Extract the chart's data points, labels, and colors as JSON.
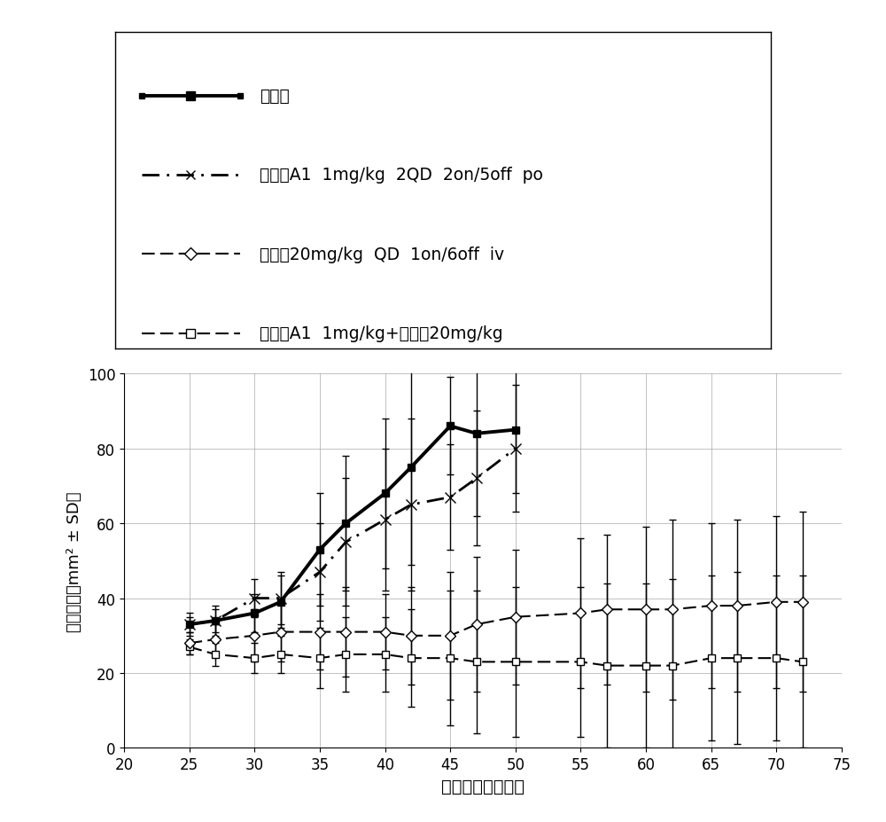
{
  "xlabel": "胿瘷接种后的天数",
  "ylabel": "胿瘷面积［mm² ± SD］",
  "xlim": [
    20,
    75
  ],
  "ylim": [
    0,
    100
  ],
  "xticks": [
    20,
    25,
    30,
    35,
    40,
    45,
    50,
    55,
    60,
    65,
    70,
    75
  ],
  "yticks": [
    0,
    20,
    40,
    60,
    80,
    100
  ],
  "series": [
    {
      "name": "媒介物",
      "x": [
        25,
        27,
        30,
        32,
        35,
        37,
        40,
        42,
        45,
        47,
        50
      ],
      "y": [
        33,
        34,
        36,
        39,
        53,
        60,
        68,
        75,
        86,
        84,
        85
      ],
      "yerr": [
        2,
        3,
        5,
        7,
        15,
        18,
        20,
        26,
        13,
        22,
        17
      ],
      "linewidth": 2.8,
      "marker": "s",
      "markersize": 6,
      "markerfacecolor": "#000000",
      "linetype": "solid"
    },
    {
      "name": "化合物A1 1mg/kg 2QD 2on/5off po",
      "x": [
        25,
        27,
        30,
        32,
        35,
        37,
        40,
        42,
        45,
        47,
        50
      ],
      "y": [
        33,
        34,
        40,
        40,
        47,
        55,
        61,
        65,
        67,
        72,
        80
      ],
      "yerr": [
        3,
        4,
        5,
        7,
        13,
        17,
        19,
        23,
        14,
        18,
        17
      ],
      "linewidth": 2.0,
      "marker": "x",
      "markersize": 9,
      "markerfacecolor": "#000000",
      "linetype": "dashdot"
    },
    {
      "name": "紫杉醇20mg/kg QD 1on/6off iv",
      "x": [
        25,
        27,
        30,
        32,
        35,
        37,
        40,
        42,
        45,
        47,
        50,
        55,
        57,
        60,
        62,
        65,
        67,
        70,
        72
      ],
      "y": [
        28,
        29,
        30,
        31,
        31,
        31,
        31,
        30,
        30,
        33,
        35,
        36,
        37,
        37,
        37,
        38,
        38,
        39,
        39
      ],
      "yerr": [
        3,
        4,
        7,
        8,
        10,
        12,
        10,
        13,
        17,
        18,
        18,
        20,
        20,
        22,
        24,
        22,
        23,
        23,
        24
      ],
      "linewidth": 1.5,
      "marker": "D",
      "markersize": 6,
      "markerfacecolor": "#ffffff",
      "linetype": "dashed"
    },
    {
      "name": "化合物A1 1mg/kg+紫杉醇20mg/kg",
      "x": [
        25,
        27,
        30,
        32,
        35,
        37,
        40,
        42,
        45,
        47,
        50,
        55,
        57,
        60,
        62,
        65,
        67,
        70,
        72
      ],
      "y": [
        27,
        25,
        24,
        25,
        24,
        25,
        25,
        24,
        24,
        23,
        23,
        23,
        22,
        22,
        22,
        24,
        24,
        24,
        23
      ],
      "yerr": [
        2,
        3,
        4,
        5,
        8,
        10,
        10,
        13,
        18,
        19,
        20,
        20,
        22,
        22,
        23,
        22,
        23,
        22,
        23
      ],
      "linewidth": 1.5,
      "marker": "s",
      "markersize": 6,
      "markerfacecolor": "#ffffff",
      "linetype": "dashed"
    }
  ],
  "legend_entries": [
    {
      "label": "媒介物",
      "marker": "s",
      "markerfacecolor": "#000000",
      "linewidth": 2.8,
      "linetype": "solid"
    },
    {
      "label": "化合物A1  1mg/kg  2QD  2on/5off  po",
      "marker": "x",
      "markerfacecolor": "#000000",
      "linewidth": 2.0,
      "linetype": "dashdot"
    },
    {
      "label": "紫杉醇20mg/kg  QD  1on/6off  iv",
      "marker": "D",
      "markerfacecolor": "#ffffff",
      "linewidth": 1.5,
      "linetype": "dashed"
    },
    {
      "label": "化合物A1  1mg/kg+紫杉醇20mg/kg",
      "marker": "s",
      "markerfacecolor": "#ffffff",
      "linewidth": 1.5,
      "linetype": "dashed"
    }
  ],
  "grid_color": "#999999",
  "grid_alpha": 0.6
}
